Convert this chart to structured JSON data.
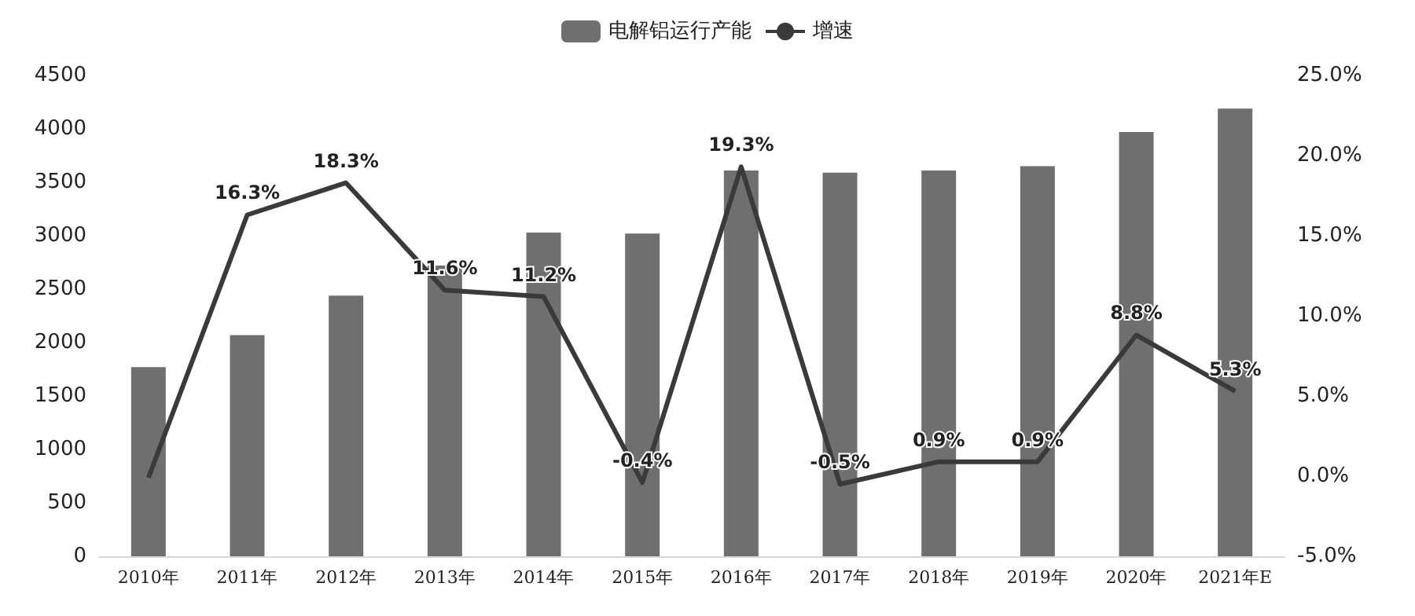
{
  "chart_data": {
    "type": "bar",
    "categories": [
      "2010年",
      "2011年",
      "2012年",
      "2013年",
      "2014年",
      "2015年",
      "2016年",
      "2017年",
      "2018年",
      "2019年",
      "2020年",
      "2021年E"
    ],
    "series": [
      {
        "name": "电解铝运行产能",
        "color": "#6f6f6f",
        "values": [
          1770,
          2070,
          2440,
          2720,
          3030,
          3020,
          3610,
          3590,
          3610,
          3650,
          3970,
          4190
        ]
      },
      {
        "name": "增速",
        "type": "line",
        "axis": "y2",
        "color": "#3a3a3a",
        "values": [
          -0.1,
          16.3,
          18.3,
          11.6,
          11.2,
          -0.4,
          19.3,
          -0.5,
          0.9,
          0.9,
          8.8,
          5.3
        ],
        "value_labels": [
          null,
          "16.3%",
          "18.3%",
          "11.6%",
          "11.2%",
          "-0.4%",
          "19.3%",
          "-0.5%",
          "0.9%",
          "0.9%",
          "8.8%",
          "5.3%"
        ]
      }
    ],
    "ylim": [
      0,
      4500
    ],
    "yticks": [
      0,
      500,
      1000,
      1500,
      2000,
      2500,
      3000,
      3500,
      4000,
      4500
    ],
    "y2lim": [
      -5,
      25
    ],
    "y2ticks": [
      {
        "value": -5,
        "label": "-5.0%"
      },
      {
        "value": 0,
        "label": "0.0%"
      },
      {
        "value": 5,
        "label": "5.0%"
      },
      {
        "value": 10,
        "label": "10.0%"
      },
      {
        "value": 15,
        "label": "15.0%"
      },
      {
        "value": 20,
        "label": "20.0%"
      },
      {
        "value": 25,
        "label": "25.0%"
      }
    ],
    "grid": false,
    "legend": "top",
    "marker": "none",
    "line_style": "solid"
  }
}
